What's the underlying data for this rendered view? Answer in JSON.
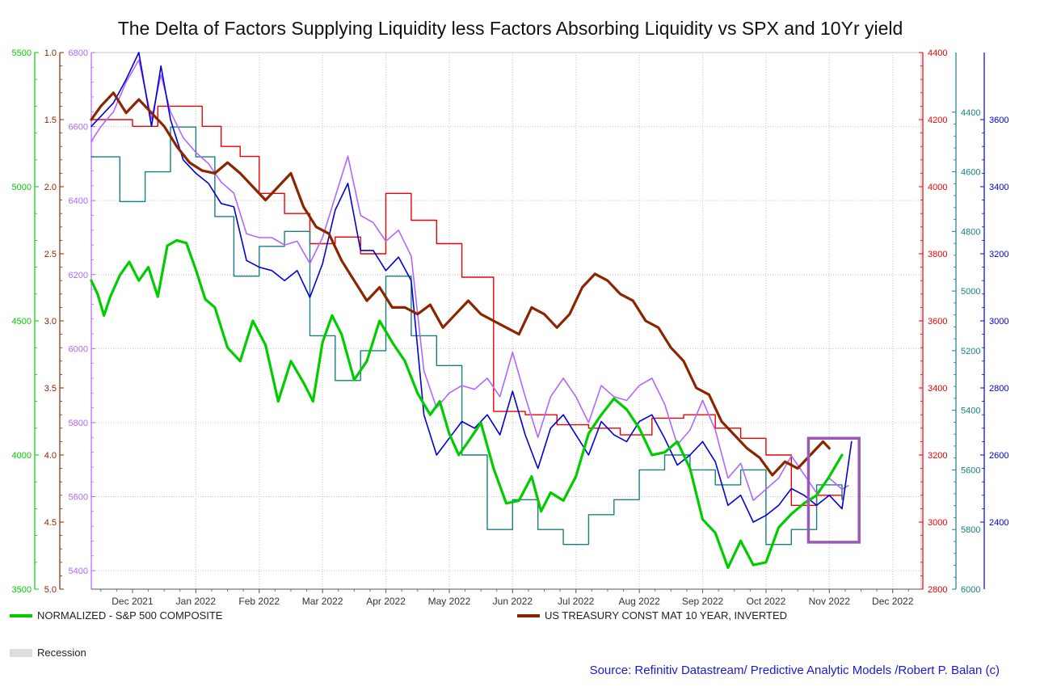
{
  "title": "The Delta of Factors Supplying Liquidity less Factors Absorbing Liquidity vs SPX and 10Yr yield",
  "source": "Source: Refinitiv Datastream/ Predictive Analytic Models /Robert P. Balan (c)",
  "colors": {
    "spx": "#00cc00",
    "treasury": "#8b2500",
    "red": "#ee0000",
    "teal": "#1a7f7f",
    "blue": "#0000dd",
    "purple": "#b266ff",
    "box": "#9b59b6",
    "recession": "#dddddd"
  },
  "legend": [
    {
      "name": "spx",
      "label": "NORMALIZED - S&P 500 COMPOSITE"
    },
    {
      "name": "treasury",
      "label": "US TREASURY CONST MAT 10 YEAR, INVERTED"
    },
    {
      "name": "recession",
      "label": "Recession"
    }
  ],
  "chart_data": {
    "type": "line",
    "title": "The Delta of Factors Supplying Liquidity less Factors Absorbing Liquidity vs SPX and 10Yr yield",
    "x_ticks": [
      "Dec 2021",
      "Jan 2022",
      "Feb 2022",
      "Mar 2022",
      "Apr 2022",
      "May 2022",
      "Jun 2022",
      "Jul 2022",
      "Aug 2022",
      "Sep 2022",
      "Oct 2022",
      "Nov 2022",
      "Dec 2022"
    ],
    "x_range": [
      -0.65,
      12.45
    ],
    "grid": true,
    "axes": [
      {
        "id": "spx",
        "side": "left",
        "color": "#00cc00",
        "min": 3500,
        "max": 5500,
        "ticks": [
          3500,
          4000,
          4500,
          5000,
          5500
        ]
      },
      {
        "id": "yield",
        "side": "left",
        "color": "#8b2500",
        "min": 1.0,
        "max": 5.0,
        "inverted": true,
        "ticks": [
          1.0,
          1.5,
          2.0,
          2.5,
          3.0,
          3.5,
          4.0,
          4.5,
          5.0
        ],
        "tick_labels": [
          "1.0",
          "1.5",
          "2.0",
          "2.5",
          "3.0",
          "3.5",
          "4.0",
          "4.5",
          "5.0"
        ]
      },
      {
        "id": "purple",
        "side": "left",
        "color": "#b266ff",
        "min": 5350,
        "max": 6800,
        "ticks": [
          5400,
          5600,
          5800,
          6000,
          6200,
          6400,
          6600,
          6800
        ]
      },
      {
        "id": "red",
        "side": "right",
        "color": "#ee0000",
        "min": 2800,
        "max": 4400,
        "ticks": [
          2800,
          3000,
          3200,
          3400,
          3600,
          3800,
          4000,
          4200,
          4400
        ]
      },
      {
        "id": "teal",
        "side": "right",
        "color": "#1a7f7f",
        "min": 4200,
        "max": 6000,
        "inverted": true,
        "ticks": [
          4400,
          4600,
          4800,
          5000,
          5200,
          5400,
          5600,
          5800,
          6000
        ]
      },
      {
        "id": "blue",
        "side": "right",
        "color": "#0000dd",
        "min": 2200,
        "max": 3800,
        "ticks": [
          2400,
          2600,
          2800,
          3000,
          3200,
          3400,
          3600
        ]
      }
    ],
    "series": [
      {
        "name": "NORMALIZED - S&P 500 COMPOSITE",
        "axis": "spx",
        "color": "#00cc00",
        "width": 3.2,
        "x": [
          -0.65,
          -0.55,
          -0.45,
          -0.35,
          -0.2,
          -0.05,
          0.1,
          0.25,
          0.4,
          0.55,
          0.7,
          0.85,
          1.0,
          1.15,
          1.3,
          1.5,
          1.7,
          1.9,
          2.1,
          2.3,
          2.5,
          2.7,
          2.85,
          3.0,
          3.15,
          3.3,
          3.5,
          3.7,
          3.9,
          4.1,
          4.3,
          4.5,
          4.7,
          4.85,
          5.0,
          5.15,
          5.3,
          5.5,
          5.7,
          5.9,
          6.1,
          6.3,
          6.45,
          6.6,
          6.8,
          7.0,
          7.2,
          7.4,
          7.6,
          7.8,
          8.0,
          8.2,
          8.4,
          8.6,
          8.8,
          9.0,
          9.2,
          9.4,
          9.6,
          9.8,
          10.0,
          10.2,
          10.4,
          10.6,
          10.8,
          11.0,
          11.2
        ],
        "y": [
          4650,
          4600,
          4520,
          4590,
          4670,
          4720,
          4650,
          4700,
          4590,
          4780,
          4800,
          4790,
          4690,
          4580,
          4550,
          4400,
          4350,
          4500,
          4410,
          4200,
          4350,
          4270,
          4200,
          4420,
          4520,
          4450,
          4280,
          4350,
          4500,
          4420,
          4350,
          4230,
          4150,
          4200,
          4080,
          4000,
          4050,
          4120,
          3950,
          3820,
          3830,
          3920,
          3790,
          3860,
          3830,
          3920,
          4080,
          4150,
          4210,
          4170,
          4100,
          4000,
          4010,
          4050,
          3950,
          3760,
          3710,
          3580,
          3680,
          3590,
          3600,
          3730,
          3780,
          3820,
          3850,
          3920,
          4000
        ]
      },
      {
        "name": "US TREASURY CONST MAT 10 YEAR, INVERTED",
        "axis": "yield",
        "color": "#8b2500",
        "width": 3.2,
        "x": [
          -0.65,
          -0.5,
          -0.3,
          -0.1,
          0.1,
          0.3,
          0.5,
          0.7,
          0.9,
          1.1,
          1.3,
          1.5,
          1.7,
          1.9,
          2.1,
          2.3,
          2.5,
          2.7,
          2.9,
          3.1,
          3.3,
          3.5,
          3.7,
          3.9,
          4.1,
          4.3,
          4.5,
          4.7,
          4.9,
          5.1,
          5.3,
          5.5,
          5.7,
          5.9,
          6.1,
          6.3,
          6.5,
          6.7,
          6.9,
          7.1,
          7.3,
          7.5,
          7.7,
          7.9,
          8.1,
          8.3,
          8.5,
          8.7,
          8.9,
          9.1,
          9.3,
          9.5,
          9.7,
          9.9,
          10.1,
          10.3,
          10.5,
          10.7,
          10.9,
          11.0
        ],
        "y": [
          1.5,
          1.4,
          1.3,
          1.45,
          1.35,
          1.45,
          1.55,
          1.7,
          1.82,
          1.88,
          1.9,
          1.82,
          1.9,
          2.0,
          2.1,
          2.0,
          1.9,
          2.15,
          2.3,
          2.35,
          2.55,
          2.7,
          2.85,
          2.75,
          2.9,
          2.9,
          2.95,
          2.88,
          3.05,
          2.95,
          2.85,
          2.95,
          3.0,
          3.05,
          3.1,
          2.9,
          2.95,
          3.05,
          2.95,
          2.75,
          2.65,
          2.7,
          2.8,
          2.85,
          3.0,
          3.05,
          3.2,
          3.3,
          3.5,
          3.55,
          3.75,
          3.85,
          3.95,
          4.02,
          4.15,
          4.05,
          4.1,
          4.0,
          3.9,
          3.95
        ]
      },
      {
        "name": "Red series",
        "axis": "red",
        "color": "#ee0000",
        "width": 1.4,
        "step": true,
        "x": [
          -0.65,
          0.0,
          0.4,
          0.8,
          1.1,
          1.4,
          1.7,
          2.0,
          2.4,
          2.8,
          3.2,
          3.6,
          4.0,
          4.4,
          4.8,
          5.2,
          5.7,
          6.2,
          6.7,
          7.2,
          7.7,
          8.2,
          8.7,
          9.2,
          9.6,
          10.0,
          10.4,
          10.8,
          11.2
        ],
        "y": [
          4200,
          4180,
          4240,
          4240,
          4180,
          4120,
          4090,
          3980,
          3920,
          3830,
          3850,
          3800,
          3980,
          3900,
          3830,
          3730,
          3330,
          3320,
          3290,
          3280,
          3260,
          3310,
          3320,
          3280,
          3250,
          3200,
          3050,
          3080,
          3070
        ]
      },
      {
        "name": "Teal series",
        "axis": "teal",
        "color": "#1a7f7f",
        "width": 1.4,
        "step": true,
        "x": [
          -0.65,
          -0.2,
          0.2,
          0.6,
          1.0,
          1.3,
          1.6,
          2.0,
          2.4,
          2.8,
          3.2,
          3.6,
          4.0,
          4.4,
          4.8,
          5.2,
          5.6,
          6.0,
          6.4,
          6.8,
          7.2,
          7.6,
          8.0,
          8.4,
          8.8,
          9.2,
          9.6,
          10.0,
          10.4,
          10.8,
          11.2
        ],
        "y": [
          4550,
          4700,
          4600,
          4450,
          4550,
          4750,
          4950,
          4850,
          4800,
          5150,
          5300,
          5200,
          4950,
          5150,
          5250,
          5550,
          5800,
          5700,
          5800,
          5850,
          5750,
          5700,
          5600,
          5550,
          5600,
          5650,
          5600,
          5850,
          5800,
          5650,
          5700
        ]
      },
      {
        "name": "Blue series",
        "axis": "blue",
        "color": "#0000dd",
        "width": 1.6,
        "x": [
          -0.65,
          -0.5,
          -0.3,
          -0.1,
          0.1,
          0.3,
          0.45,
          0.6,
          0.8,
          1.0,
          1.2,
          1.4,
          1.6,
          1.8,
          2.0,
          2.2,
          2.4,
          2.6,
          2.8,
          3.0,
          3.2,
          3.4,
          3.6,
          3.8,
          4.0,
          4.2,
          4.4,
          4.6,
          4.8,
          5.0,
          5.2,
          5.4,
          5.6,
          5.8,
          6.0,
          6.2,
          6.4,
          6.6,
          6.8,
          7.0,
          7.2,
          7.4,
          7.6,
          7.8,
          8.0,
          8.2,
          8.4,
          8.6,
          8.8,
          9.0,
          9.2,
          9.4,
          9.6,
          9.8,
          10.0,
          10.2,
          10.4,
          10.6,
          10.8,
          11.0,
          11.2,
          11.35
        ],
        "y": [
          3580,
          3610,
          3650,
          3720,
          3800,
          3580,
          3760,
          3600,
          3480,
          3440,
          3410,
          3350,
          3340,
          3180,
          3160,
          3150,
          3120,
          3150,
          3070,
          3170,
          3330,
          3410,
          3210,
          3210,
          3150,
          3190,
          3120,
          2720,
          2600,
          2650,
          2700,
          2680,
          2720,
          2660,
          2790,
          2660,
          2560,
          2680,
          2720,
          2660,
          2600,
          2700,
          2660,
          2640,
          2700,
          2720,
          2650,
          2570,
          2600,
          2640,
          2580,
          2450,
          2480,
          2400,
          2420,
          2450,
          2500,
          2480,
          2450,
          2480,
          2440,
          2640
        ]
      },
      {
        "name": "Purple series",
        "axis": "purple",
        "color": "#b266ff",
        "width": 1.6,
        "x": [
          -0.65,
          -0.5,
          -0.3,
          -0.1,
          0.1,
          0.3,
          0.45,
          0.6,
          0.8,
          1.0,
          1.2,
          1.4,
          1.6,
          1.8,
          2.0,
          2.2,
          2.4,
          2.6,
          2.8,
          3.0,
          3.2,
          3.4,
          3.6,
          3.8,
          4.0,
          4.2,
          4.4,
          4.6,
          4.8,
          5.0,
          5.2,
          5.4,
          5.6,
          5.8,
          6.0,
          6.2,
          6.4,
          6.6,
          6.8,
          7.0,
          7.2,
          7.4,
          7.6,
          7.8,
          8.0,
          8.2,
          8.4,
          8.6,
          8.8,
          9.0,
          9.2,
          9.4,
          9.6,
          9.8,
          10.0,
          10.2,
          10.4,
          10.6,
          10.8,
          11.0,
          11.2,
          11.3
        ],
        "y": [
          6560,
          6600,
          6640,
          6720,
          6780,
          6620,
          6740,
          6640,
          6570,
          6530,
          6500,
          6450,
          6420,
          6310,
          6300,
          6300,
          6280,
          6290,
          6230,
          6300,
          6410,
          6520,
          6360,
          6340,
          6290,
          6320,
          6250,
          5940,
          5840,
          5880,
          5900,
          5890,
          5920,
          5870,
          5990,
          5870,
          5760,
          5870,
          5920,
          5870,
          5800,
          5900,
          5870,
          5860,
          5900,
          5920,
          5850,
          5740,
          5780,
          5860,
          5780,
          5650,
          5690,
          5590,
          5620,
          5650,
          5710,
          5660,
          5610,
          5650,
          5620,
          5630
        ]
      }
    ],
    "annotation": {
      "type": "rectangle",
      "x_range": [
        10.67,
        11.47
      ],
      "y_axis": "red",
      "y_range": [
        2940,
        3250
      ]
    }
  }
}
